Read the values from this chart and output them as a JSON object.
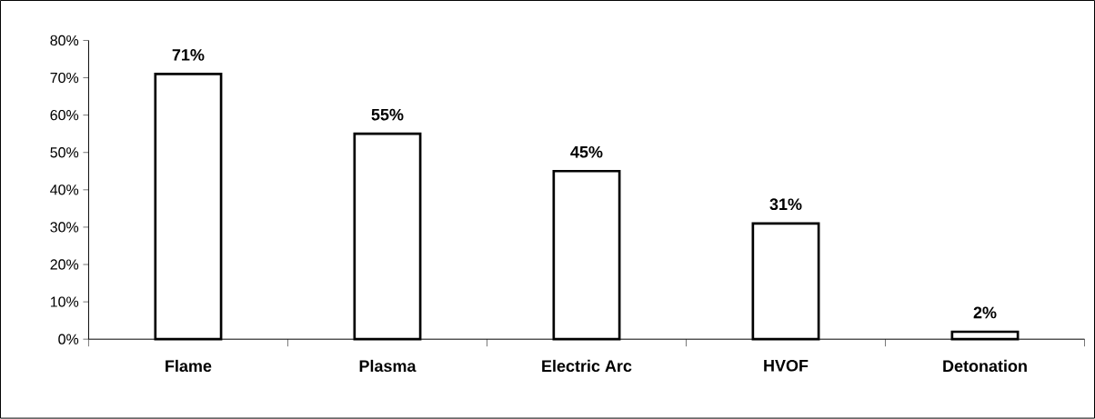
{
  "chart_data": {
    "type": "bar",
    "categories": [
      "Flame",
      "Plasma",
      "Electric Arc",
      "HVOF",
      "Detonation"
    ],
    "values": [
      71,
      55,
      45,
      31,
      2
    ],
    "value_labels": [
      "71%",
      "55%",
      "45%",
      "31%",
      "2%"
    ],
    "color": "#ffffff",
    "ylim": [
      0,
      80
    ],
    "yticks": [
      {
        "value": 0,
        "label": "0%"
      },
      {
        "value": 10,
        "label": "10%"
      },
      {
        "value": 20,
        "label": "20%"
      },
      {
        "value": 30,
        "label": "30%"
      },
      {
        "value": 40,
        "label": "40%"
      },
      {
        "value": 50,
        "label": "50%"
      },
      {
        "value": 60,
        "label": "60%"
      },
      {
        "value": 70,
        "label": "70%"
      },
      {
        "value": 80,
        "label": "80%"
      }
    ],
    "grid": false
  }
}
